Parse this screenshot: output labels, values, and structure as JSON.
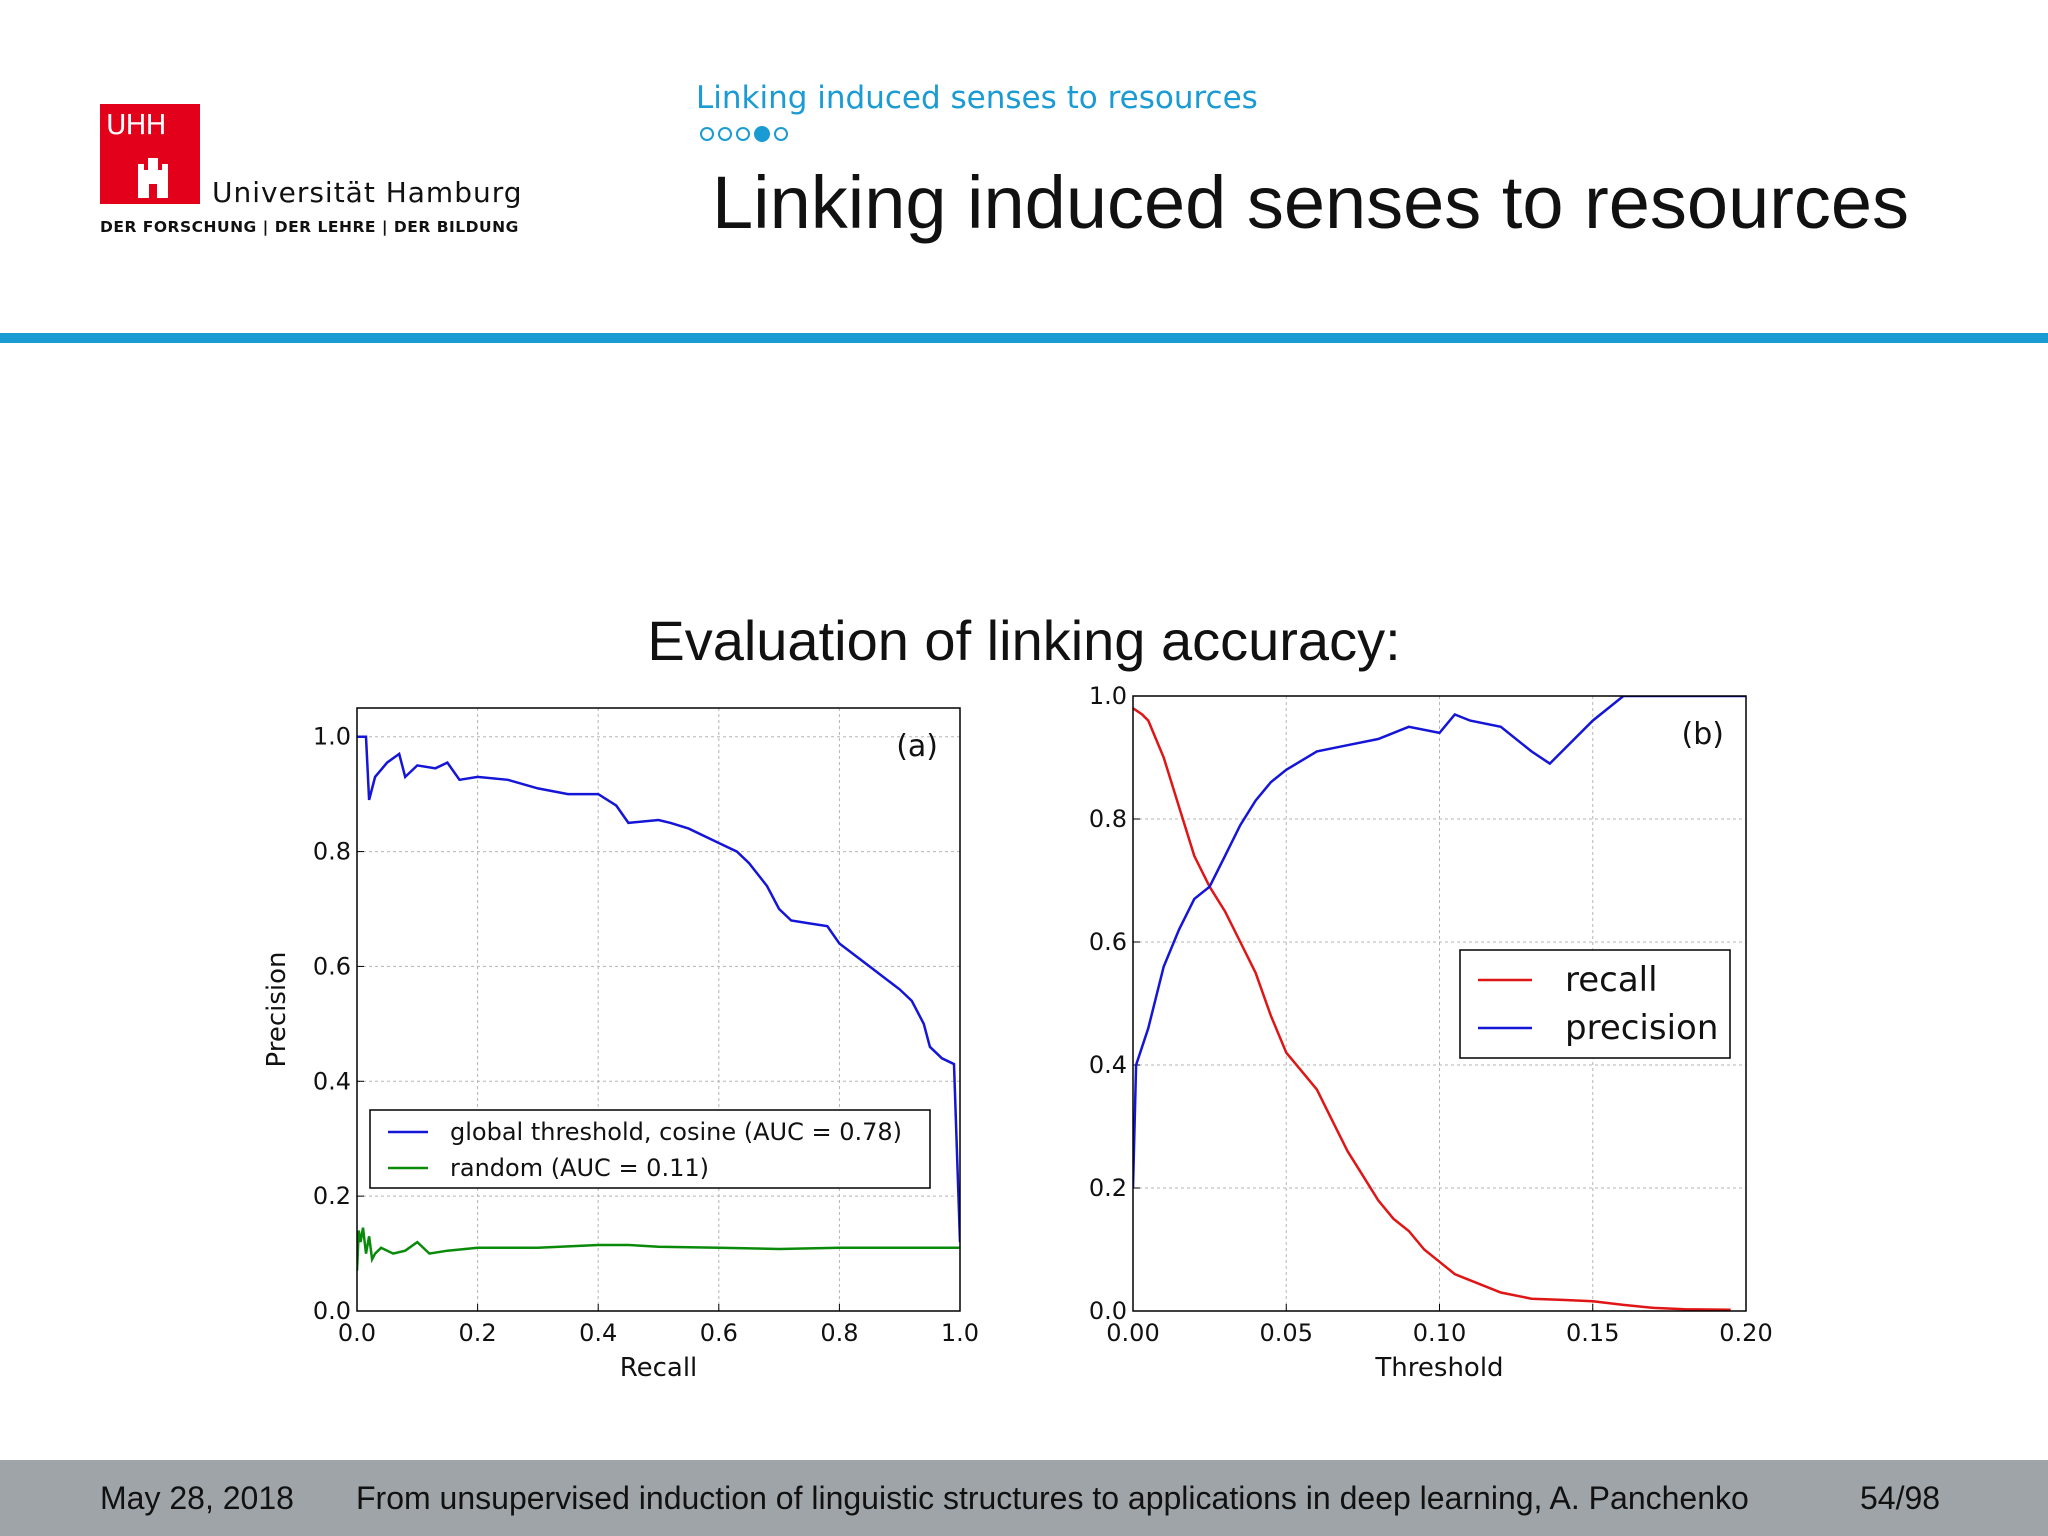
{
  "logo": {
    "abbr": "UHH",
    "name": "Universität Hamburg",
    "tagline": "DER FORSCHUNG | DER LEHRE | DER BILDUNG",
    "brand_color": "#e2001a"
  },
  "header": {
    "section": "Linking induced senses to resources",
    "progress": {
      "total": 5,
      "current": 4
    },
    "title": "Linking induced senses to resources",
    "accent_color": "#1a9bd3"
  },
  "main": {
    "subtitle": "Evaluation of linking accuracy:"
  },
  "chart_data": [
    {
      "type": "line",
      "panel_label": "(a)",
      "xlabel": "Recall",
      "ylabel": "Precision",
      "xlim": [
        0,
        1
      ],
      "ylim": [
        0,
        1.05
      ],
      "xticks": [
        "0.0",
        "0.2",
        "0.4",
        "0.6",
        "0.8",
        "1.0"
      ],
      "yticks": [
        "0.0",
        "0.2",
        "0.4",
        "0.6",
        "0.8",
        "1.0"
      ],
      "grid": true,
      "legend": "lower-left",
      "series": [
        {
          "name": "global threshold, cosine (AUC = 0.78)",
          "color": "#1515d8",
          "x": [
            0.0,
            0.015,
            0.02,
            0.03,
            0.05,
            0.07,
            0.08,
            0.1,
            0.13,
            0.15,
            0.17,
            0.2,
            0.25,
            0.3,
            0.35,
            0.4,
            0.43,
            0.45,
            0.5,
            0.52,
            0.55,
            0.6,
            0.63,
            0.65,
            0.68,
            0.7,
            0.72,
            0.75,
            0.78,
            0.8,
            0.85,
            0.9,
            0.92,
            0.94,
            0.95,
            0.97,
            0.99,
            1.0
          ],
          "y": [
            1.0,
            1.0,
            0.89,
            0.93,
            0.955,
            0.97,
            0.93,
            0.95,
            0.945,
            0.955,
            0.925,
            0.93,
            0.925,
            0.91,
            0.9,
            0.9,
            0.88,
            0.85,
            0.855,
            0.85,
            0.84,
            0.815,
            0.8,
            0.78,
            0.74,
            0.7,
            0.68,
            0.675,
            0.67,
            0.64,
            0.6,
            0.56,
            0.54,
            0.5,
            0.46,
            0.44,
            0.43,
            0.12
          ]
        },
        {
          "name": "random (AUC = 0.11)",
          "color": "#0a8a0a",
          "x": [
            0.0,
            0.003,
            0.006,
            0.01,
            0.015,
            0.02,
            0.025,
            0.03,
            0.04,
            0.06,
            0.08,
            0.1,
            0.12,
            0.15,
            0.2,
            0.3,
            0.4,
            0.45,
            0.5,
            0.6,
            0.7,
            0.8,
            0.9,
            1.0
          ],
          "y": [
            0.07,
            0.14,
            0.12,
            0.145,
            0.1,
            0.13,
            0.09,
            0.1,
            0.11,
            0.1,
            0.105,
            0.12,
            0.1,
            0.105,
            0.11,
            0.11,
            0.115,
            0.115,
            0.112,
            0.11,
            0.108,
            0.11,
            0.11,
            0.11
          ]
        }
      ]
    },
    {
      "type": "line",
      "panel_label": "(b)",
      "xlabel": "Threshold",
      "ylabel": "",
      "xlim": [
        0,
        0.2
      ],
      "ylim": [
        0,
        1.0
      ],
      "xticks": [
        "0.00",
        "0.05",
        "0.10",
        "0.15",
        "0.20"
      ],
      "yticks": [
        "0.0",
        "0.2",
        "0.4",
        "0.6",
        "0.8",
        "1.0"
      ],
      "grid": true,
      "legend": "center-right",
      "series": [
        {
          "name": "recall",
          "color": "#e01515",
          "x": [
            0.0,
            0.003,
            0.005,
            0.01,
            0.015,
            0.02,
            0.025,
            0.03,
            0.035,
            0.04,
            0.045,
            0.05,
            0.055,
            0.06,
            0.065,
            0.07,
            0.075,
            0.08,
            0.085,
            0.09,
            0.095,
            0.1,
            0.105,
            0.11,
            0.12,
            0.13,
            0.14,
            0.15,
            0.16,
            0.17,
            0.18,
            0.195
          ],
          "y": [
            0.98,
            0.97,
            0.96,
            0.9,
            0.82,
            0.74,
            0.69,
            0.65,
            0.6,
            0.55,
            0.48,
            0.42,
            0.39,
            0.36,
            0.31,
            0.26,
            0.22,
            0.18,
            0.15,
            0.13,
            0.1,
            0.08,
            0.06,
            0.05,
            0.03,
            0.02,
            0.018,
            0.016,
            0.01,
            0.005,
            0.003,
            0.002
          ]
        },
        {
          "name": "precision",
          "color": "#1515d8",
          "x": [
            0.0,
            0.001,
            0.005,
            0.01,
            0.015,
            0.02,
            0.025,
            0.03,
            0.035,
            0.04,
            0.045,
            0.05,
            0.06,
            0.07,
            0.08,
            0.09,
            0.1,
            0.105,
            0.11,
            0.12,
            0.13,
            0.136,
            0.15,
            0.16,
            0.2
          ],
          "y": [
            0.2,
            0.4,
            0.46,
            0.56,
            0.62,
            0.67,
            0.69,
            0.74,
            0.79,
            0.83,
            0.86,
            0.88,
            0.91,
            0.92,
            0.93,
            0.95,
            0.94,
            0.97,
            0.96,
            0.95,
            0.91,
            0.89,
            0.96,
            1.0,
            1.0
          ]
        }
      ]
    }
  ],
  "footer": {
    "date": "May 28, 2018",
    "talk": "From unsupervised induction of linguistic structures to applications in deep learning, A. Panchenko",
    "page": "54/98"
  }
}
